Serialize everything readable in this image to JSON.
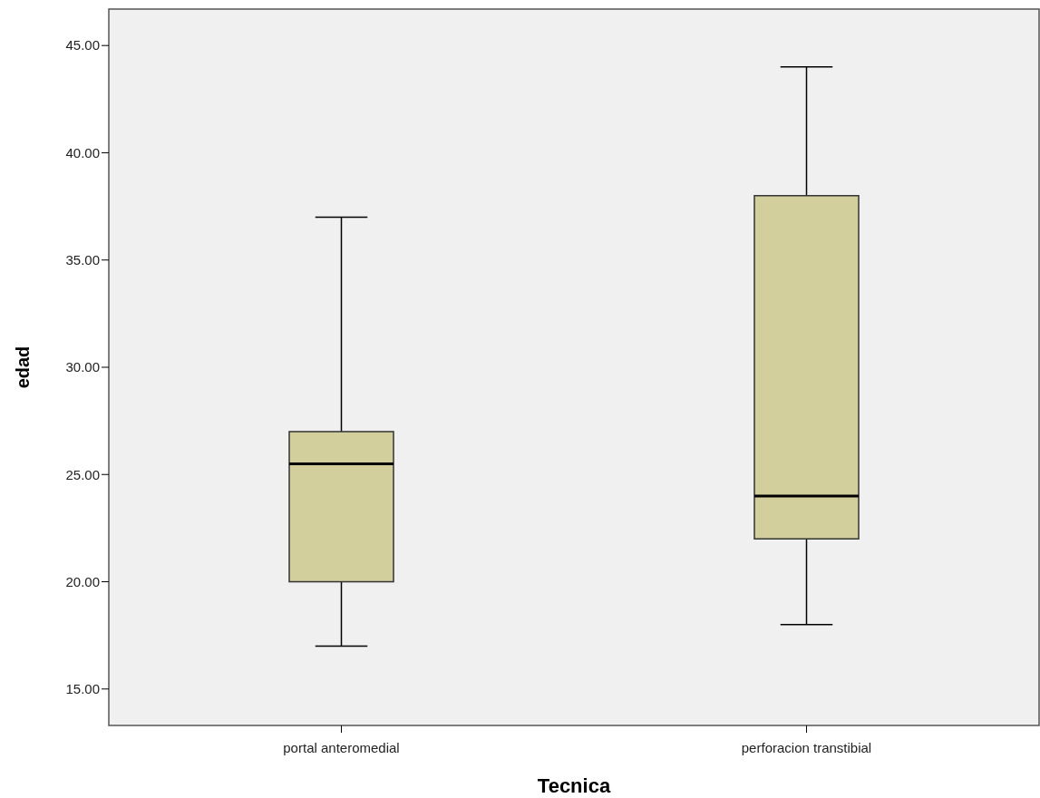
{
  "chart_data": {
    "type": "box",
    "xlabel": "Tecnica",
    "ylabel": "edad",
    "categories": [
      "portal anteromedial",
      "perforacion transtibial"
    ],
    "boxes": [
      {
        "low": 17,
        "q1": 20,
        "median": 25.5,
        "q3": 27,
        "high": 37
      },
      {
        "low": 18,
        "q1": 22,
        "median": 24,
        "q3": 38,
        "high": 44
      }
    ],
    "color": "#d3cf9c",
    "ylim": [
      13.3,
      46.7
    ],
    "yticks": [
      {
        "value": 15,
        "label": "15.00"
      },
      {
        "value": 20,
        "label": "20.00"
      },
      {
        "value": 25,
        "label": "25.00"
      },
      {
        "value": 30,
        "label": "30.00"
      },
      {
        "value": 35,
        "label": "35.00"
      },
      {
        "value": 40,
        "label": "40.00"
      },
      {
        "value": 45,
        "label": "45.00"
      }
    ],
    "grid": false
  }
}
